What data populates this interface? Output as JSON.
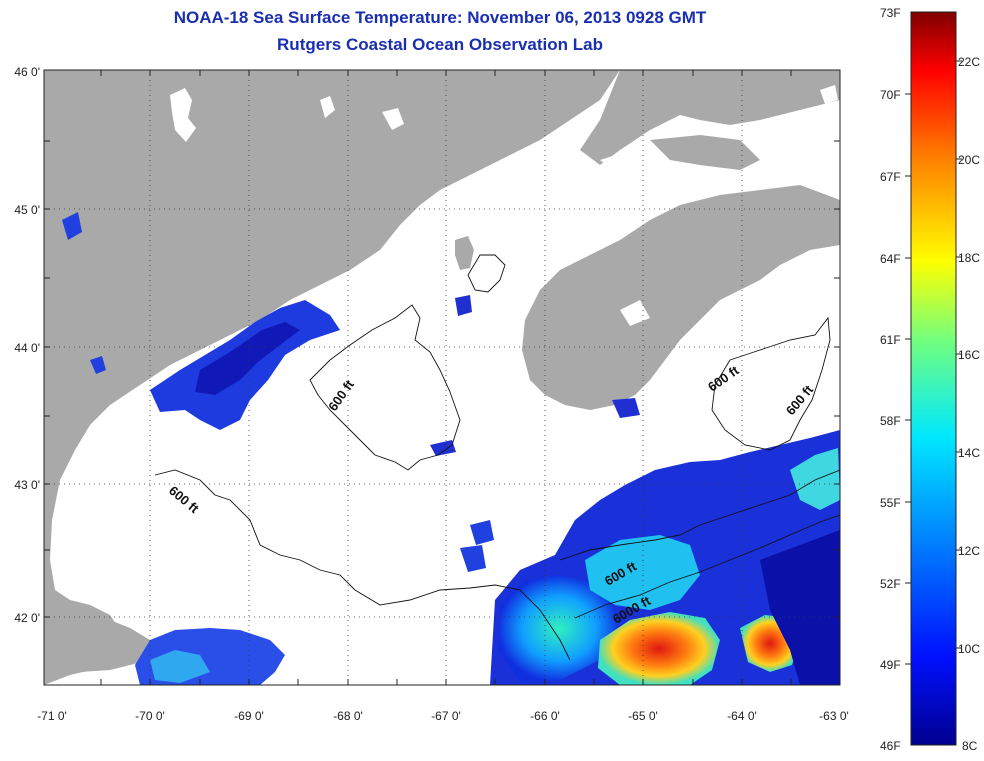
{
  "title": "NOAA-18 Sea Surface Temperature:  November 06, 2013 0928 GMT",
  "subtitle": "Rutgers Coastal Ocean Observation Lab",
  "lat_labels": [
    "46 0'",
    "45 0'",
    "44 0'",
    "43 0'",
    "42 0'"
  ],
  "lon_labels": [
    "-71 0'",
    "-70 0'",
    "-69 0'",
    "-68 0'",
    "-67 0'",
    "-66 0'",
    "-65 0'",
    "-64 0'",
    "-63 0'"
  ],
  "contours": [
    "600 ft",
    "600 ft",
    "600 ft",
    "600 ft",
    "600 ft",
    "6000 ft"
  ],
  "colorbar": {
    "fahrenheit": [
      "73F",
      "70F",
      "67F",
      "64F",
      "61F",
      "58F",
      "55F",
      "52F",
      "49F",
      "46F"
    ],
    "celsius": [
      "22C",
      "20C",
      "18C",
      "16C",
      "14C",
      "12C",
      "10C",
      "8C"
    ]
  },
  "colors": {
    "land": "#a9a9a9",
    "title": "#1a2fb0",
    "cold": "#0a18c8",
    "warm": "#e82010"
  }
}
